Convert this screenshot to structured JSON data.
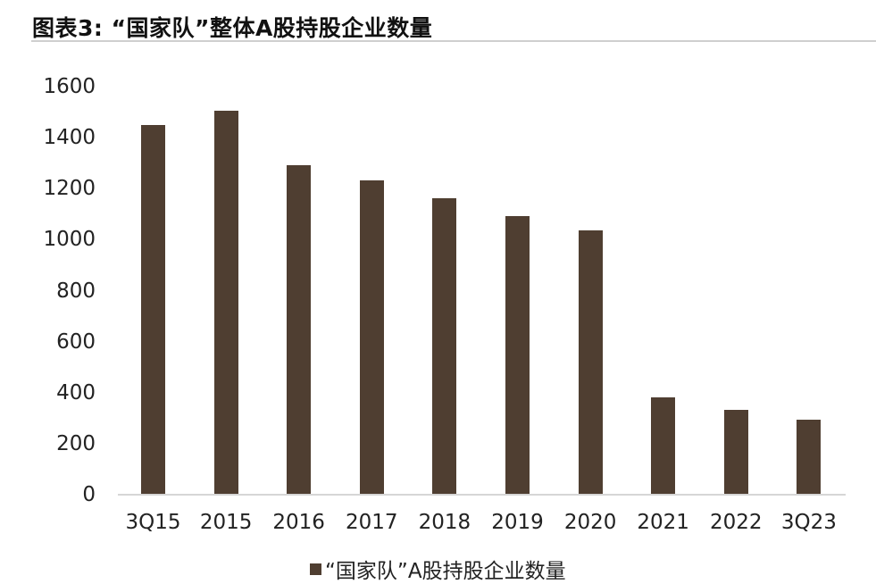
{
  "header": {
    "title": "图表3: “国家队”整体A股持股企业数量"
  },
  "chart_data": {
    "type": "bar",
    "title": "图表3: “国家队”整体A股持股企业数量",
    "xlabel": "",
    "ylabel": "",
    "categories": [
      "3Q15",
      "2015",
      "2016",
      "2017",
      "2018",
      "2019",
      "2020",
      "2021",
      "2022",
      "3Q23"
    ],
    "series": [
      {
        "name": "“国家队”A股持股企业数量",
        "values": [
          1450,
          1504,
          1291,
          1231,
          1162,
          1091,
          1035,
          382,
          332,
          294
        ],
        "color": "#4f3e31"
      }
    ],
    "ylim": [
      0,
      1600
    ],
    "yticks": [
      0,
      200,
      400,
      600,
      800,
      1000,
      1200,
      1400,
      1600
    ],
    "grid": false,
    "legend_position": "bottom"
  },
  "axis": {
    "y_labels": [
      "1600",
      "1400",
      "1200",
      "1000",
      "800",
      "600",
      "400",
      "200",
      "0"
    ]
  },
  "legend": {
    "label": "“国家队”A股持股企业数量",
    "color": "#4f3e31"
  },
  "colors": {
    "bar": "#4f3e31",
    "axis": "#d6d6d6",
    "title_rule": "#cfcfcf"
  }
}
